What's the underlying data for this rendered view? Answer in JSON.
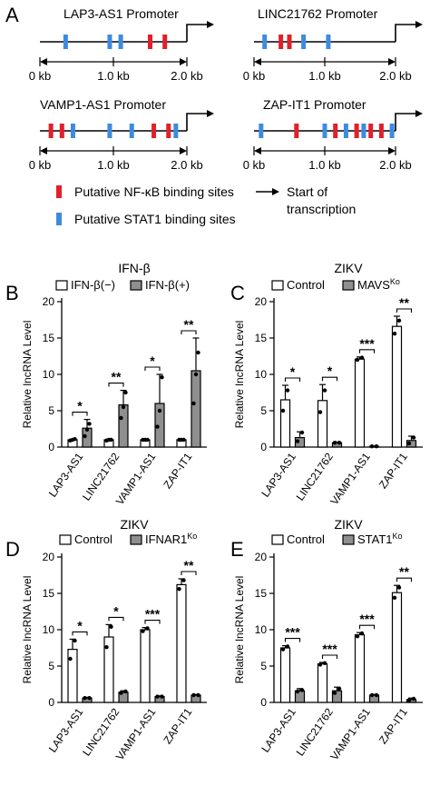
{
  "panel_A": {
    "letter": "A",
    "axis_labels": [
      "0 kb",
      "1.0 kb",
      "2.0 kb"
    ],
    "promoters": [
      {
        "title": "LAP3-AS1  Promoter",
        "nfkb_kb": [
          1.5,
          1.7
        ],
        "stat1_kb": [
          0.35,
          0.95,
          1.1
        ]
      },
      {
        "title": "LINC21762  Promoter",
        "nfkb_kb": [
          0.38,
          0.5
        ],
        "stat1_kb": [
          0.15,
          0.7,
          1.05
        ]
      },
      {
        "title": "VAMP1-AS1  Promoter",
        "nfkb_kb": [
          0.15,
          0.3,
          1.55,
          1.75
        ],
        "stat1_kb": [
          0.45,
          0.95,
          1.25,
          1.85
        ]
      },
      {
        "title": "ZAP-IT1    Promoter",
        "nfkb_kb": [
          0.6,
          1.15,
          1.45,
          1.65,
          1.8
        ],
        "stat1_kb": [
          0.1,
          1.0,
          1.3,
          1.55,
          1.95
        ]
      }
    ],
    "legend": {
      "nfkb": "Putative NF-κB binding sites",
      "stat1": "Putative STAT1 binding sites",
      "tss_line1": "Start of",
      "tss_line2": "transcription"
    }
  },
  "colors": {
    "nfkb": "#e0202a",
    "stat1": "#3d8be0",
    "bar_open": "#ffffff",
    "bar_gray": "#8f8f8f",
    "line": "#000000"
  },
  "chart_data": [
    {
      "type": "bar",
      "letter": "B",
      "title": "IFN-β",
      "categories": [
        "LAP3-AS1",
        "LINC21762",
        "VAMP1-AS1",
        "ZAP-IT1"
      ],
      "ylabel": "Relative lncRNA Level",
      "ylim": [
        0,
        20
      ],
      "yticks": [
        0,
        5,
        10,
        15,
        20
      ],
      "series": [
        {
          "name": "IFN-β(−)",
          "values": [
            1.0,
            1.0,
            1.0,
            1.0
          ],
          "errors": [
            0.1,
            0.1,
            0.1,
            0.1
          ]
        },
        {
          "name": "IFN-β(+)",
          "values": [
            2.6,
            5.8,
            6.0,
            10.5
          ],
          "errors": [
            1.2,
            2.0,
            4.0,
            4.5
          ]
        }
      ],
      "points": [
        [
          [
            0.9,
            1.0,
            1.1
          ],
          [
            1.5,
            2.4,
            3.2
          ]
        ],
        [
          [
            0.9,
            1.0,
            1.0
          ],
          [
            4.0,
            5.5,
            7.5
          ]
        ],
        [
          [
            1.0,
            1.0,
            1.0
          ],
          [
            2.8,
            5.0,
            9.6
          ]
        ],
        [
          [
            1.0,
            1.0,
            1.0
          ],
          [
            6.0,
            10.0,
            13.0
          ]
        ]
      ],
      "significance": [
        "*",
        "**",
        "*",
        "**"
      ],
      "legend": "top"
    },
    {
      "type": "bar",
      "letter": "C",
      "title": "ZIKV",
      "categories": [
        "LAP3-AS1",
        "LINC21762",
        "VAMP1-AS1",
        "ZAP-IT1"
      ],
      "ylabel": "Relative lncRNA Level",
      "ylim": [
        0,
        20
      ],
      "yticks": [
        0,
        5,
        10,
        15,
        20
      ],
      "series": [
        {
          "name": "Control",
          "values": [
            6.5,
            6.4,
            12.1,
            16.6
          ],
          "errors": [
            2.0,
            2.2,
            0.3,
            1.4
          ]
        },
        {
          "name": "MAVS",
          "name_sup": "Ko",
          "values": [
            1.3,
            0.6,
            0.1,
            0.9
          ],
          "errors": [
            0.8,
            0.1,
            0.05,
            0.6
          ]
        }
      ],
      "points": [
        [
          [
            5.0,
            7.8
          ],
          [
            0.8,
            2.0
          ]
        ],
        [
          [
            4.8,
            7.8
          ],
          [
            0.6,
            0.6
          ]
        ],
        [
          [
            12.0,
            12.3
          ],
          [
            0.1,
            0.1
          ]
        ],
        [
          [
            15.6,
            17.4
          ],
          [
            0.5,
            1.3
          ]
        ]
      ],
      "significance": [
        "*",
        "*",
        "***",
        "**"
      ],
      "legend": "top"
    },
    {
      "type": "bar",
      "letter": "D",
      "title": "ZIKV",
      "categories": [
        "LAP3-AS1",
        "LINC21762",
        "VAMP1-AS1",
        "ZAP-IT1"
      ],
      "ylabel": "Relative lncRNA Level",
      "ylim": [
        0,
        20
      ],
      "yticks": [
        0,
        5,
        10,
        15,
        20
      ],
      "series": [
        {
          "name": "Control",
          "values": [
            7.3,
            9.0,
            10.0,
            16.2
          ],
          "errors": [
            1.4,
            1.7,
            0.3,
            0.8
          ]
        },
        {
          "name": "IFNAR1",
          "name_sup": "Ko",
          "values": [
            0.6,
            1.4,
            0.8,
            1.0
          ],
          "errors": [
            0.1,
            0.2,
            0.1,
            0.1
          ]
        }
      ],
      "points": [
        [
          [
            6.0,
            8.5
          ],
          [
            0.6,
            0.6
          ]
        ],
        [
          [
            7.6,
            10.4
          ],
          [
            1.3,
            1.5
          ]
        ],
        [
          [
            9.8,
            10.2
          ],
          [
            0.8,
            0.8
          ]
        ],
        [
          [
            15.6,
            16.8
          ],
          [
            1.0,
            1.0
          ]
        ]
      ],
      "significance": [
        "*",
        "*",
        "***",
        "**"
      ],
      "legend": "top"
    },
    {
      "type": "bar",
      "letter": "E",
      "title": "ZIKV",
      "categories": [
        "LAP3-AS1",
        "LINC21762",
        "VAMP1-AS1",
        "ZAP-IT1"
      ],
      "ylabel": "Relative lncRNA Level",
      "ylim": [
        0,
        20
      ],
      "yticks": [
        0,
        5,
        10,
        15,
        20
      ],
      "series": [
        {
          "name": "Control",
          "values": [
            7.5,
            5.3,
            9.3,
            15.1
          ],
          "errors": [
            0.3,
            0.2,
            0.3,
            1.0
          ]
        },
        {
          "name": "STAT1",
          "name_sup": "Ko",
          "values": [
            1.6,
            1.6,
            1.0,
            0.4
          ],
          "errors": [
            0.3,
            0.5,
            0.1,
            0.2
          ]
        }
      ],
      "points": [
        [
          [
            7.3,
            7.7
          ],
          [
            1.5,
            1.7
          ]
        ],
        [
          [
            5.2,
            5.4
          ],
          [
            1.3,
            1.9
          ]
        ],
        [
          [
            9.1,
            9.5
          ],
          [
            1.0,
            1.0
          ]
        ],
        [
          [
            14.4,
            15.8
          ],
          [
            0.3,
            0.5
          ]
        ]
      ],
      "significance": [
        "***",
        "***",
        "***",
        "**"
      ],
      "legend": "top"
    }
  ]
}
